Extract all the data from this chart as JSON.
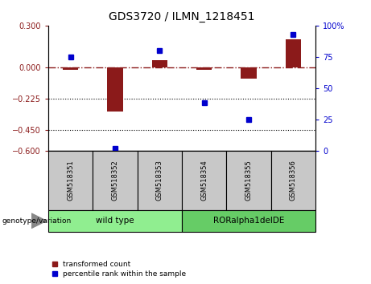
{
  "title": "GDS3720 / ILMN_1218451",
  "samples": [
    "GSM518351",
    "GSM518352",
    "GSM518353",
    "GSM518354",
    "GSM518355",
    "GSM518356"
  ],
  "red_bars": [
    -0.02,
    -0.32,
    0.05,
    -0.02,
    -0.08,
    0.2
  ],
  "blue_squares": [
    75,
    2,
    80,
    38,
    25,
    93
  ],
  "ylim_left": [
    -0.6,
    0.3
  ],
  "ylim_right": [
    0,
    100
  ],
  "yticks_left": [
    0.3,
    0.0,
    -0.225,
    -0.45,
    -0.6
  ],
  "yticks_right": [
    100,
    75,
    50,
    25,
    0
  ],
  "hlines_dotted": [
    -0.225,
    -0.45
  ],
  "dashdot_hline": 0.0,
  "groups": [
    {
      "label": "wild type",
      "indices": [
        0,
        1,
        2
      ],
      "color": "#90EE90"
    },
    {
      "label": "RORalpha1delDE",
      "indices": [
        3,
        4,
        5
      ],
      "color": "#66CC66"
    }
  ],
  "group_label": "genotype/variation",
  "bar_color": "#8B1A1A",
  "square_color": "#0000CD",
  "legend_red": "transformed count",
  "legend_blue": "percentile rank within the sample",
  "bar_width": 0.35,
  "tick_label_fontsize": 7,
  "title_fontsize": 10,
  "background_sample": "#C8C8C8",
  "group_color_1": "#90EE90",
  "group_color_2": "#66CC66"
}
